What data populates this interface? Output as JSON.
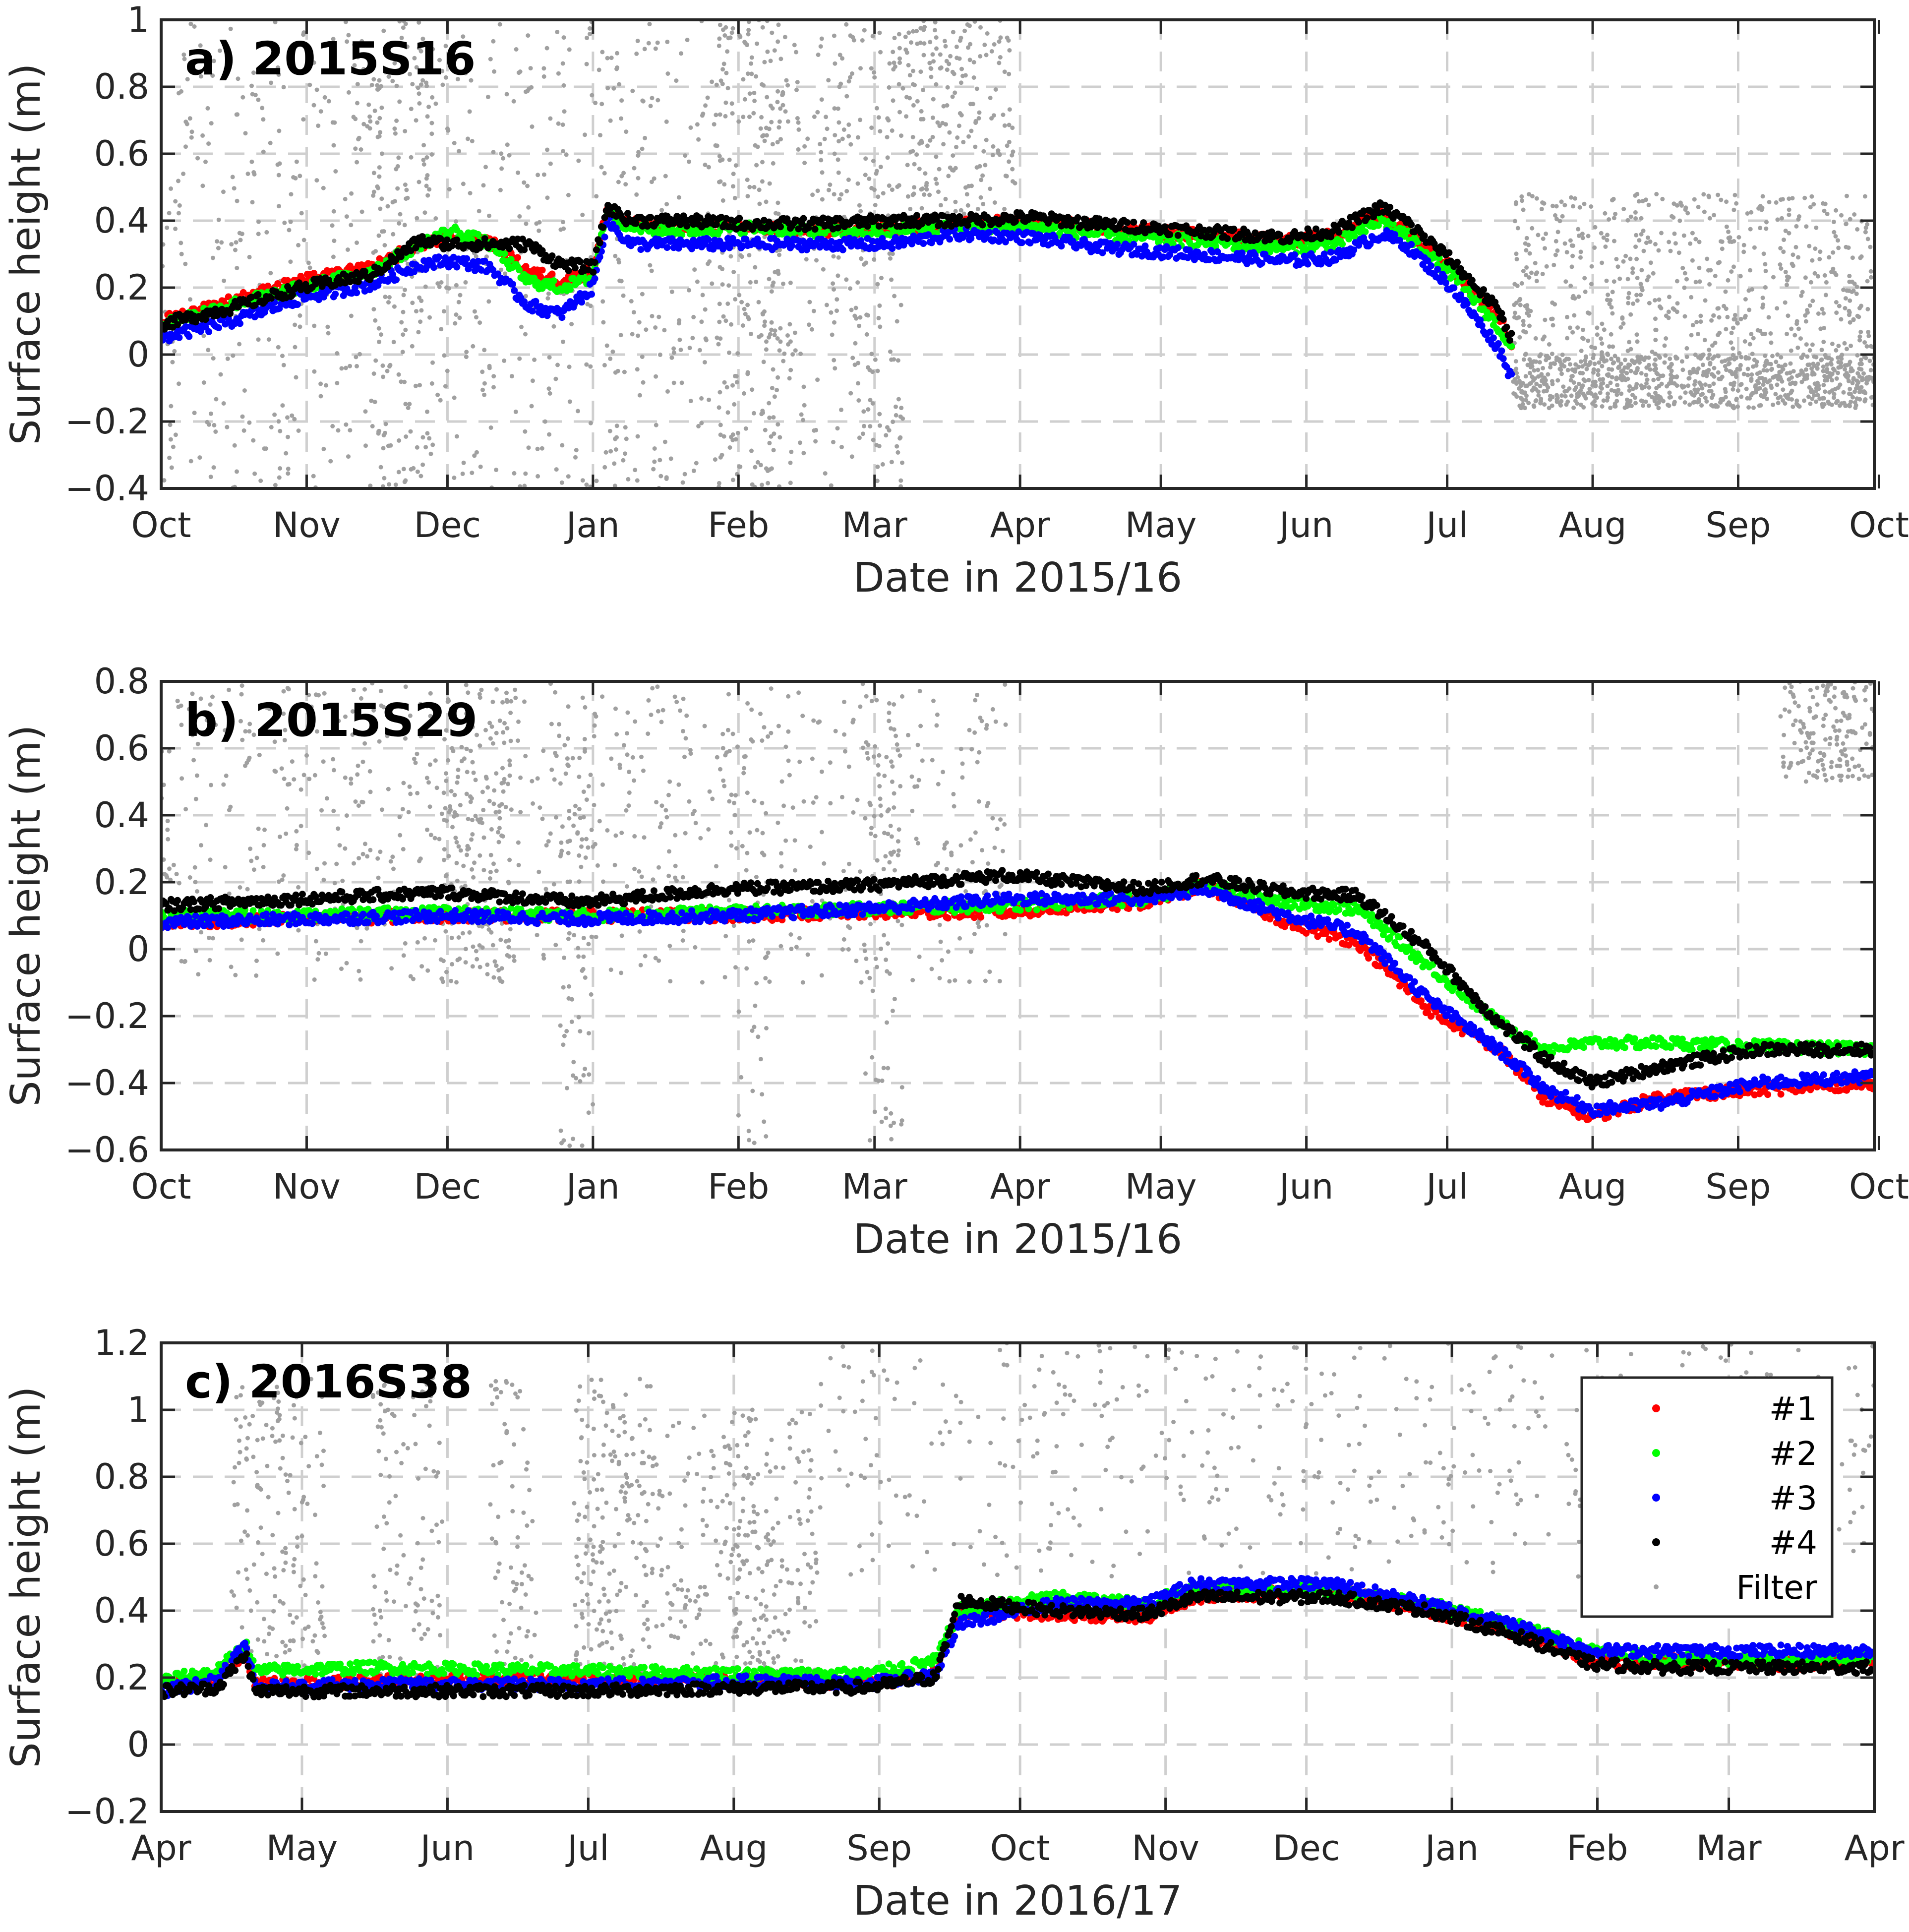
{
  "figure": {
    "colors": {
      "series1": "#ff0000",
      "series2": "#00ff00",
      "series3": "#0000ff",
      "series4": "#000000",
      "filter": "#a0a0a0",
      "grid": "#cfcfcf"
    }
  },
  "chart_data": [
    {
      "type": "scatter",
      "title": "a) 2015S16",
      "xlabel": "Date in 2015/16",
      "ylabel": "Surface height (m)",
      "xlim": [
        0,
        365
      ],
      "ylim": [
        -0.4,
        1.0
      ],
      "grid": true,
      "yticks": [
        -0.4,
        -0.2,
        0,
        0.2,
        0.4,
        0.6,
        0.8,
        1.0
      ],
      "ytick_labels": [
        "−0.4",
        "−0.2",
        "0",
        "0.2",
        "0.4",
        "0.6",
        "0.8",
        "1"
      ],
      "xtick_days": [
        0,
        31,
        61,
        92,
        123,
        152,
        183,
        213,
        244,
        274,
        305,
        336,
        366
      ],
      "xtick_labels": [
        "Oct",
        "Nov",
        "Dec",
        "Jan",
        "Feb",
        "Mar",
        "Apr",
        "May",
        "Jun",
        "Jul",
        "Aug",
        "Sep",
        "Oct"
      ],
      "series": [
        {
          "name": "#1",
          "color": "#ff0000",
          "end_day": 288,
          "days": [
            0,
            15,
            30,
            45,
            55,
            62,
            70,
            78,
            85,
            92,
            95,
            100,
            110,
            125,
            140,
            155,
            170,
            185,
            200,
            220,
            240,
            250,
            260,
            265,
            275,
            285,
            288
          ],
          "values": [
            0.1,
            0.16,
            0.22,
            0.26,
            0.33,
            0.35,
            0.34,
            0.25,
            0.22,
            0.25,
            0.43,
            0.39,
            0.38,
            0.38,
            0.37,
            0.38,
            0.39,
            0.4,
            0.38,
            0.36,
            0.34,
            0.36,
            0.42,
            0.38,
            0.26,
            0.11,
            0.03
          ]
        },
        {
          "name": "#2",
          "color": "#00ff00",
          "end_day": 288,
          "days": [
            0,
            15,
            30,
            45,
            55,
            62,
            70,
            78,
            85,
            92,
            95,
            100,
            110,
            125,
            140,
            155,
            170,
            185,
            200,
            220,
            240,
            250,
            260,
            265,
            275,
            285,
            288
          ],
          "values": [
            0.09,
            0.15,
            0.2,
            0.25,
            0.33,
            0.37,
            0.33,
            0.22,
            0.2,
            0.23,
            0.43,
            0.38,
            0.37,
            0.38,
            0.37,
            0.37,
            0.38,
            0.38,
            0.36,
            0.34,
            0.32,
            0.33,
            0.4,
            0.36,
            0.24,
            0.08,
            0.01
          ]
        },
        {
          "name": "#3",
          "color": "#0000ff",
          "end_day": 288,
          "days": [
            0,
            15,
            30,
            45,
            55,
            62,
            70,
            78,
            85,
            92,
            95,
            100,
            110,
            125,
            140,
            155,
            170,
            185,
            200,
            220,
            240,
            250,
            260,
            265,
            275,
            285,
            288
          ],
          "values": [
            0.05,
            0.1,
            0.17,
            0.21,
            0.27,
            0.28,
            0.26,
            0.15,
            0.12,
            0.2,
            0.4,
            0.33,
            0.33,
            0.33,
            0.33,
            0.33,
            0.36,
            0.35,
            0.32,
            0.3,
            0.28,
            0.29,
            0.36,
            0.33,
            0.2,
            0.02,
            -0.08
          ]
        },
        {
          "name": "#4",
          "color": "#000000",
          "end_day": 288,
          "days": [
            0,
            15,
            30,
            45,
            55,
            62,
            70,
            78,
            85,
            92,
            95,
            100,
            110,
            125,
            140,
            155,
            170,
            185,
            200,
            220,
            240,
            250,
            260,
            265,
            275,
            285,
            288
          ],
          "values": [
            0.09,
            0.14,
            0.2,
            0.24,
            0.34,
            0.33,
            0.33,
            0.33,
            0.27,
            0.26,
            0.44,
            0.4,
            0.4,
            0.39,
            0.39,
            0.4,
            0.4,
            0.41,
            0.39,
            0.37,
            0.35,
            0.37,
            0.44,
            0.4,
            0.28,
            0.13,
            0.04
          ]
        }
      ],
      "filter_bands": [
        {
          "start": 0,
          "end": 145,
          "min": -0.4,
          "max": 1.0,
          "density": 0.35
        },
        {
          "start": 45,
          "end": 58,
          "min": -0.4,
          "max": 1.0,
          "density": 0.6
        },
        {
          "start": 118,
          "end": 132,
          "min": -0.4,
          "max": 1.0,
          "density": 0.7
        },
        {
          "start": 143,
          "end": 158,
          "min": -0.4,
          "max": 1.0,
          "density": 0.7
        },
        {
          "start": 158,
          "end": 182,
          "min": 0.4,
          "max": 1.0,
          "density": 0.5
        },
        {
          "start": 288,
          "end": 365,
          "min": -0.16,
          "max": 0.0,
          "density": 0.6
        },
        {
          "start": 288,
          "end": 365,
          "min": 0.0,
          "max": 0.48,
          "density": 0.4
        }
      ]
    },
    {
      "type": "scatter",
      "title": "b) 2015S29",
      "xlabel": "Date in 2015/16",
      "ylabel": "Surface height (m)",
      "xlim": [
        0,
        365
      ],
      "ylim": [
        -0.6,
        0.8
      ],
      "grid": true,
      "yticks": [
        -0.6,
        -0.4,
        -0.2,
        0,
        0.2,
        0.4,
        0.6,
        0.8
      ],
      "ytick_labels": [
        "−0.6",
        "−0.4",
        "−0.2",
        "0",
        "0.2",
        "0.4",
        "0.6",
        "0.8"
      ],
      "xtick_days": [
        0,
        31,
        61,
        92,
        123,
        152,
        183,
        213,
        244,
        274,
        305,
        336,
        366
      ],
      "xtick_labels": [
        "Oct",
        "Nov",
        "Dec",
        "Jan",
        "Feb",
        "Mar",
        "Apr",
        "May",
        "Jun",
        "Jul",
        "Aug",
        "Sep",
        "Oct"
      ],
      "series": [
        {
          "name": "#1",
          "color": "#ff0000",
          "end_day": 365,
          "days": [
            0,
            30,
            60,
            90,
            120,
            150,
            180,
            210,
            222,
            240,
            255,
            270,
            285,
            295,
            305,
            320,
            340,
            365
          ],
          "values": [
            0.08,
            0.09,
            0.1,
            0.1,
            0.1,
            0.11,
            0.11,
            0.14,
            0.19,
            0.08,
            0.02,
            -0.18,
            -0.3,
            -0.45,
            -0.5,
            -0.44,
            -0.42,
            -0.4
          ]
        },
        {
          "name": "#2",
          "color": "#00ff00",
          "end_day": 365,
          "days": [
            0,
            30,
            60,
            90,
            120,
            150,
            180,
            210,
            222,
            240,
            255,
            270,
            285,
            295,
            305,
            320,
            340,
            365
          ],
          "values": [
            0.1,
            0.1,
            0.11,
            0.1,
            0.11,
            0.12,
            0.13,
            0.15,
            0.19,
            0.14,
            0.12,
            -0.05,
            -0.22,
            -0.3,
            -0.28,
            -0.28,
            -0.29,
            -0.3
          ]
        },
        {
          "name": "#3",
          "color": "#0000ff",
          "end_day": 365,
          "days": [
            0,
            30,
            60,
            90,
            120,
            150,
            180,
            210,
            222,
            240,
            255,
            270,
            285,
            295,
            305,
            320,
            340,
            365
          ],
          "values": [
            0.08,
            0.09,
            0.1,
            0.09,
            0.1,
            0.12,
            0.15,
            0.15,
            0.18,
            0.1,
            0.05,
            -0.15,
            -0.3,
            -0.42,
            -0.48,
            -0.46,
            -0.4,
            -0.38
          ]
        },
        {
          "name": "#4",
          "color": "#000000",
          "end_day": 365,
          "days": [
            0,
            30,
            60,
            90,
            120,
            150,
            180,
            210,
            222,
            240,
            255,
            270,
            285,
            295,
            305,
            320,
            340,
            365
          ],
          "values": [
            0.13,
            0.15,
            0.17,
            0.14,
            0.18,
            0.19,
            0.22,
            0.18,
            0.21,
            0.17,
            0.16,
            0.0,
            -0.22,
            -0.33,
            -0.4,
            -0.35,
            -0.3,
            -0.3
          ]
        }
      ],
      "filter_bands": [
        {
          "start": 0,
          "end": 180,
          "min": -0.1,
          "max": 0.8,
          "density": 0.25
        },
        {
          "start": 60,
          "end": 75,
          "min": -0.1,
          "max": 0.8,
          "density": 0.55
        },
        {
          "start": 85,
          "end": 92,
          "min": -0.6,
          "max": 0.6,
          "density": 0.5
        },
        {
          "start": 123,
          "end": 130,
          "min": -0.6,
          "max": 0.8,
          "density": 0.35
        },
        {
          "start": 150,
          "end": 158,
          "min": -0.6,
          "max": 0.8,
          "density": 0.45
        },
        {
          "start": 345,
          "end": 365,
          "min": 0.5,
          "max": 0.8,
          "density": 0.45
        }
      ]
    },
    {
      "type": "scatter",
      "title": "c) 2016S38",
      "xlabel": "Date in 2016/17",
      "ylabel": "Surface height (m)",
      "xlim": [
        0,
        365
      ],
      "ylim": [
        -0.2,
        1.2
      ],
      "grid": true,
      "yticks": [
        -0.2,
        0,
        0.2,
        0.4,
        0.6,
        0.8,
        1.0,
        1.2
      ],
      "ytick_labels": [
        "−0.2",
        "0",
        "0.2",
        "0.4",
        "0.6",
        "0.8",
        "1",
        "1.2"
      ],
      "xtick_days": [
        0,
        30,
        61,
        91,
        122,
        153,
        183,
        214,
        244,
        275,
        306,
        334,
        365
      ],
      "xtick_labels": [
        "Apr",
        "May",
        "Jun",
        "Jul",
        "Aug",
        "Sep",
        "Oct",
        "Nov",
        "Dec",
        "Jan",
        "Feb",
        "Mar",
        "Apr"
      ],
      "series": [
        {
          "name": "#1",
          "color": "#ff0000",
          "end_day": 365,
          "days": [
            0,
            12,
            18,
            20,
            45,
            90,
            130,
            150,
            165,
            170,
            190,
            210,
            220,
            250,
            270,
            290,
            305,
            320,
            345,
            365
          ],
          "values": [
            0.18,
            0.2,
            0.28,
            0.18,
            0.19,
            0.2,
            0.19,
            0.18,
            0.21,
            0.4,
            0.39,
            0.38,
            0.44,
            0.46,
            0.4,
            0.33,
            0.25,
            0.25,
            0.24,
            0.25
          ]
        },
        {
          "name": "#2",
          "color": "#00ff00",
          "end_day": 365,
          "days": [
            0,
            12,
            18,
            20,
            45,
            90,
            130,
            150,
            165,
            170,
            190,
            210,
            220,
            250,
            270,
            290,
            305,
            320,
            345,
            365
          ],
          "values": [
            0.19,
            0.22,
            0.3,
            0.22,
            0.23,
            0.22,
            0.21,
            0.21,
            0.25,
            0.4,
            0.44,
            0.42,
            0.47,
            0.46,
            0.42,
            0.35,
            0.28,
            0.26,
            0.25,
            0.26
          ]
        },
        {
          "name": "#3",
          "color": "#0000ff",
          "end_day": 365,
          "days": [
            0,
            12,
            18,
            20,
            45,
            90,
            130,
            150,
            165,
            170,
            190,
            210,
            220,
            250,
            270,
            290,
            305,
            320,
            345,
            365
          ],
          "values": [
            0.16,
            0.19,
            0.3,
            0.17,
            0.18,
            0.18,
            0.19,
            0.18,
            0.21,
            0.36,
            0.42,
            0.42,
            0.48,
            0.48,
            0.42,
            0.35,
            0.28,
            0.28,
            0.28,
            0.28
          ]
        },
        {
          "name": "#4",
          "color": "#000000",
          "end_day": 365,
          "days": [
            0,
            12,
            18,
            20,
            45,
            90,
            130,
            150,
            165,
            170,
            190,
            210,
            220,
            250,
            270,
            290,
            305,
            320,
            345,
            365
          ],
          "values": [
            0.16,
            0.17,
            0.27,
            0.16,
            0.16,
            0.16,
            0.17,
            0.17,
            0.2,
            0.43,
            0.4,
            0.39,
            0.44,
            0.44,
            0.4,
            0.32,
            0.24,
            0.23,
            0.23,
            0.23
          ]
        }
      ],
      "filter_bands": [
        {
          "start": 15,
          "end": 35,
          "min": 0.2,
          "max": 1.1,
          "density": 0.45
        },
        {
          "start": 45,
          "end": 60,
          "min": 0.2,
          "max": 1.1,
          "density": 0.4
        },
        {
          "start": 70,
          "end": 80,
          "min": 0.2,
          "max": 1.1,
          "density": 0.4
        },
        {
          "start": 88,
          "end": 105,
          "min": 0.15,
          "max": 1.1,
          "density": 0.65
        },
        {
          "start": 105,
          "end": 130,
          "min": 0.2,
          "max": 1.0,
          "density": 0.3
        },
        {
          "start": 120,
          "end": 140,
          "min": 0.2,
          "max": 1.0,
          "density": 0.4
        },
        {
          "start": 140,
          "end": 365,
          "min": 0.5,
          "max": 1.2,
          "density": 0.12
        }
      ],
      "legend": {
        "location": "top-right",
        "entries": [
          {
            "label": "#1",
            "color": "#ff0000"
          },
          {
            "label": "#2",
            "color": "#00ff00"
          },
          {
            "label": "#3",
            "color": "#0000ff"
          },
          {
            "label": "#4",
            "color": "#000000"
          },
          {
            "label": "Filter",
            "color": "#a0a0a0"
          }
        ]
      }
    }
  ]
}
